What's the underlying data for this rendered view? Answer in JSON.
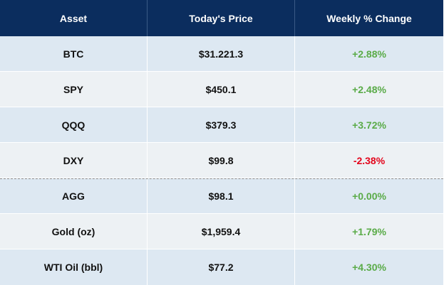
{
  "table": {
    "headers": [
      "Asset",
      "Today's Price",
      "Weekly % Change"
    ],
    "rows": [
      {
        "asset": "BTC",
        "price": "$31.221.3",
        "change": "+2.88%",
        "direction": "positive"
      },
      {
        "asset": "SPY",
        "price": "$450.1",
        "change": "+2.48%",
        "direction": "positive"
      },
      {
        "asset": "QQQ",
        "price": "$379.3",
        "change": "+3.72%",
        "direction": "positive"
      },
      {
        "asset": "DXY",
        "price": "$99.8",
        "change": "-2.38%",
        "direction": "negative"
      },
      {
        "asset": "AGG",
        "price": "$98.1",
        "change": "+0.00%",
        "direction": "positive"
      },
      {
        "asset": "Gold (oz)",
        "price": "$1,959.4",
        "change": "+1.79%",
        "direction": "positive"
      },
      {
        "asset": "WTI Oil (bbl)",
        "price": "$77.2",
        "change": "+4.30%",
        "direction": "positive"
      }
    ]
  },
  "colors": {
    "header_bg": "#0b2d5e",
    "row_band_a": "#dde8f2",
    "row_band_b": "#edf1f4",
    "positive": "#5aab48",
    "negative": "#e3051b"
  }
}
